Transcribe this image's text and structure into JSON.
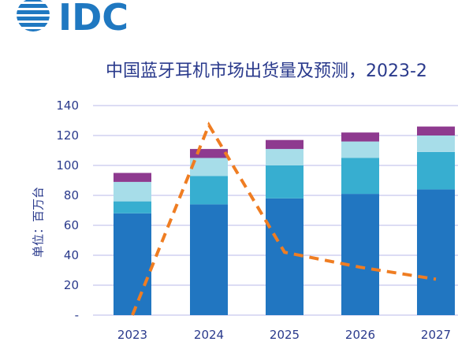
{
  "logo": {
    "text": "IDC",
    "color": "#1f78c1"
  },
  "chart_data": {
    "type": "bar",
    "title": "中国蓝牙耳机市场出货量及预测，2023-2",
    "ylabel": "单位：百万台",
    "xlabel": "",
    "categories": [
      "2023",
      "2024",
      "2025",
      "2026",
      "2027"
    ],
    "ylim": [
      0,
      140
    ],
    "yticks": [
      "-",
      "20",
      "40",
      "60",
      "80",
      "100",
      "120",
      "140"
    ],
    "stacked": true,
    "series": [
      {
        "values": [
          68,
          74,
          78,
          81,
          84
        ],
        "color": "#2176c1"
      },
      {
        "values": [
          8,
          19,
          22,
          24,
          25
        ],
        "color": "#37aed0"
      },
      {
        "values": [
          13,
          12,
          11,
          11,
          11
        ],
        "color": "#a7dde9"
      },
      {
        "values": [
          6,
          6,
          6,
          6,
          6
        ],
        "color": "#8e3a8f"
      }
    ],
    "line": {
      "style": "dashed",
      "color": "#ef7d22",
      "values": [
        0,
        127,
        42,
        32,
        24
      ]
    },
    "grid": true,
    "gridColor": "#b8b8e8"
  }
}
